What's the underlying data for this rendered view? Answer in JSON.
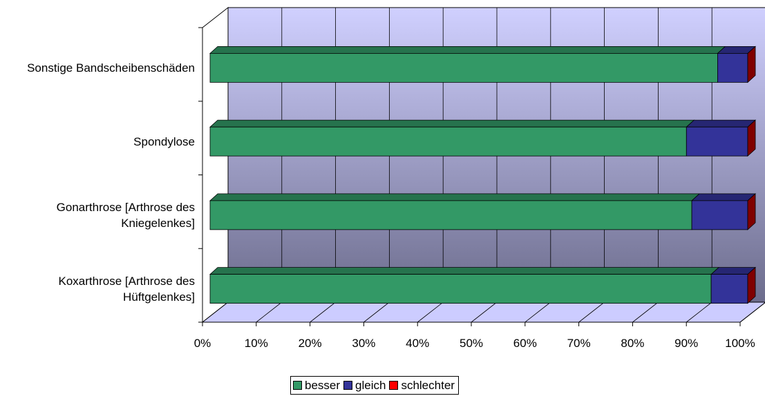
{
  "chart_data": {
    "type": "bar",
    "orientation": "horizontal",
    "stacked": "percent",
    "three_d": true,
    "categories": [
      "Sonstige Bandscheibenschäden",
      "Spondylose",
      "Gonarthrose [Arthrose des Kniegelenkes]",
      "Koxarthrose [Arthrose des Hüftgelenkes]"
    ],
    "series": [
      {
        "name": "besser",
        "color": "#339966",
        "values": [
          94.4,
          88.6,
          89.6,
          93.2
        ]
      },
      {
        "name": "gleich",
        "color": "#333399",
        "values": [
          5.6,
          11.4,
          10.4,
          6.8
        ]
      },
      {
        "name": "schlechter",
        "color": "#ff0000",
        "values": [
          0,
          0,
          0,
          0
        ]
      }
    ],
    "x_ticks": [
      "0%",
      "10%",
      "20%",
      "30%",
      "40%",
      "50%",
      "60%",
      "70%",
      "80%",
      "90%",
      "100%"
    ],
    "xlim": [
      0,
      100
    ],
    "grid": true,
    "legend_position": "bottom",
    "colors": {
      "wall_top": "#d0d0ff",
      "wall_bottom": "#6c6c8c",
      "floor": "#ccccff"
    }
  }
}
